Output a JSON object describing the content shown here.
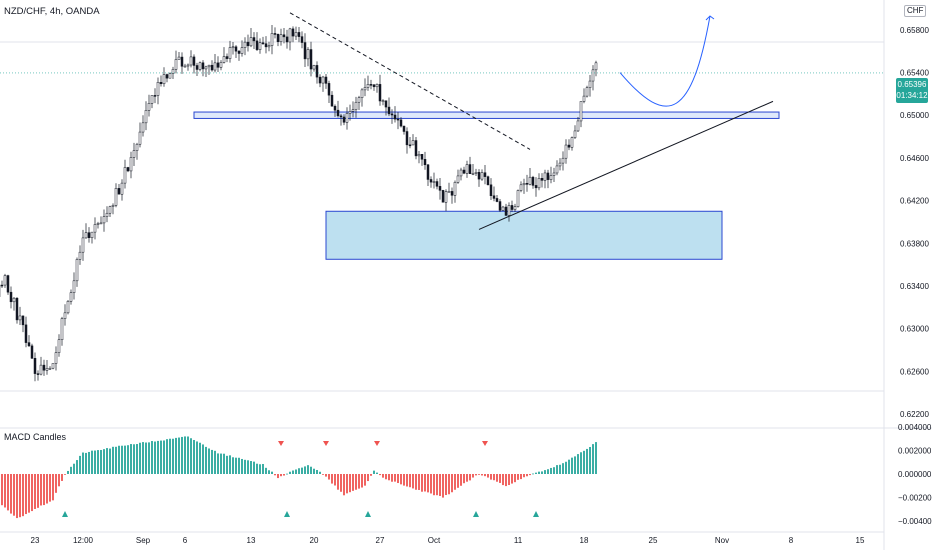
{
  "header": {
    "symbol_title": "NZD/CHF, 4h, OANDA",
    "currency_badge": "CHF"
  },
  "price_panel": {
    "current_price_label": "0.65396",
    "countdown_label": "01:34:12"
  },
  "macd_panel": {
    "title": "MACD Candles"
  },
  "colors": {
    "up": "#26a69a",
    "down": "#ef5350",
    "accent": "#2962ff",
    "current_price_bg": "#26a69a",
    "zone_fill": "#bde0f0",
    "zone_stroke": "#2a47d0",
    "projection": "#2962ff"
  },
  "chart_data": [
    {
      "type": "candlestick",
      "title": "NZD/CHF, 4h, OANDA",
      "y_axis_ticks": [
        "0.65800",
        "0.65400",
        "0.65000",
        "0.64600",
        "0.64200",
        "0.63800",
        "0.63400",
        "0.63000",
        "0.62600",
        "0.62200"
      ],
      "x_axis_ticks": [
        "23",
        "12:00",
        "Sep",
        "6",
        "13",
        "20",
        "27",
        "Oct",
        "11",
        "18",
        "25",
        "Nov",
        "8",
        "15"
      ],
      "ylim": [
        0.6205,
        0.6608
      ],
      "x_range_bars": [
        0,
        314
      ],
      "bars_per_week": 30,
      "current_price": 0.65396,
      "price_path": [
        {
          "x": 0,
          "p": 0.633
        },
        {
          "x": 4,
          "p": 0.6345
        },
        {
          "x": 10,
          "p": 0.63
        },
        {
          "x": 14,
          "p": 0.6262
        },
        {
          "x": 20,
          "p": 0.627
        },
        {
          "x": 30,
          "p": 0.638
        },
        {
          "x": 42,
          "p": 0.643
        },
        {
          "x": 55,
          "p": 0.653
        },
        {
          "x": 61,
          "p": 0.6552
        },
        {
          "x": 72,
          "p": 0.6545
        },
        {
          "x": 80,
          "p": 0.656
        },
        {
          "x": 90,
          "p": 0.657
        },
        {
          "x": 100,
          "p": 0.6575
        },
        {
          "x": 105,
          "p": 0.6555
        },
        {
          "x": 110,
          "p": 0.653
        },
        {
          "x": 117,
          "p": 0.649
        },
        {
          "x": 125,
          "p": 0.6535
        },
        {
          "x": 132,
          "p": 0.6505
        },
        {
          "x": 140,
          "p": 0.647
        },
        {
          "x": 150,
          "p": 0.642
        },
        {
          "x": 158,
          "p": 0.645
        },
        {
          "x": 165,
          "p": 0.6435
        },
        {
          "x": 168,
          "p": 0.6415
        },
        {
          "x": 171,
          "p": 0.6405
        },
        {
          "x": 177,
          "p": 0.6435
        },
        {
          "x": 185,
          "p": 0.644
        },
        {
          "x": 192,
          "p": 0.647
        },
        {
          "x": 197,
          "p": 0.652
        },
        {
          "x": 201,
          "p": 0.6545
        }
      ],
      "zones": [
        {
          "x0": 67,
          "x1": 262,
          "p_top": 0.6503,
          "p_bottom": 0.6497
        },
        {
          "x0": 111,
          "x1": 243,
          "p_top": 0.641,
          "p_bottom": 0.6365
        }
      ],
      "lines": [
        {
          "x0": 99,
          "p0": 0.6596,
          "x1": 179,
          "p1": 0.6468,
          "style": "dashed"
        },
        {
          "x0": 162,
          "p0": 0.6393,
          "x1": 260,
          "p1": 0.6513,
          "style": "solid"
        }
      ],
      "projection": [
        {
          "x": 209,
          "p": 0.654
        },
        {
          "x": 225,
          "p": 0.65
        },
        {
          "x": 233,
          "p": 0.651
        },
        {
          "x": 239,
          "p": 0.6593
        }
      ]
    },
    {
      "type": "histogram",
      "title": "MACD Candles",
      "y_axis_ticks": [
        "0.004000",
        "0.002000",
        "0.000000",
        "−0.002000",
        "−0.004000"
      ],
      "ylim": [
        -0.0042,
        0.0042
      ],
      "profile": [
        {
          "x": 0,
          "v": -0.002
        },
        {
          "x": 8,
          "v": -0.0038
        },
        {
          "x": 14,
          "v": -0.003
        },
        {
          "x": 20,
          "v": -0.0022
        },
        {
          "x": 24,
          "v": 0.0
        },
        {
          "x": 30,
          "v": 0.0018
        },
        {
          "x": 45,
          "v": 0.0025
        },
        {
          "x": 60,
          "v": 0.003
        },
        {
          "x": 65,
          "v": 0.0032
        },
        {
          "x": 75,
          "v": 0.0018
        },
        {
          "x": 90,
          "v": 0.0008
        },
        {
          "x": 95,
          "v": -0.0003
        },
        {
          "x": 105,
          "v": 0.0008
        },
        {
          "x": 110,
          "v": 0.0
        },
        {
          "x": 117,
          "v": -0.0018
        },
        {
          "x": 124,
          "v": -0.001
        },
        {
          "x": 127,
          "v": 0.0003
        },
        {
          "x": 130,
          "v": -0.0003
        },
        {
          "x": 137,
          "v": -0.001
        },
        {
          "x": 150,
          "v": -0.002
        },
        {
          "x": 162,
          "v": 0.0
        },
        {
          "x": 171,
          "v": -0.001
        },
        {
          "x": 180,
          "v": 0.0
        },
        {
          "x": 186,
          "v": 0.0005
        },
        {
          "x": 191,
          "v": 0.001
        },
        {
          "x": 197,
          "v": 0.002
        },
        {
          "x": 201,
          "v": 0.0027
        }
      ],
      "sell_signals_bars": [
        96,
        111,
        128,
        164
      ],
      "buy_signals_bars": [
        24,
        98,
        125,
        161,
        181
      ]
    }
  ]
}
